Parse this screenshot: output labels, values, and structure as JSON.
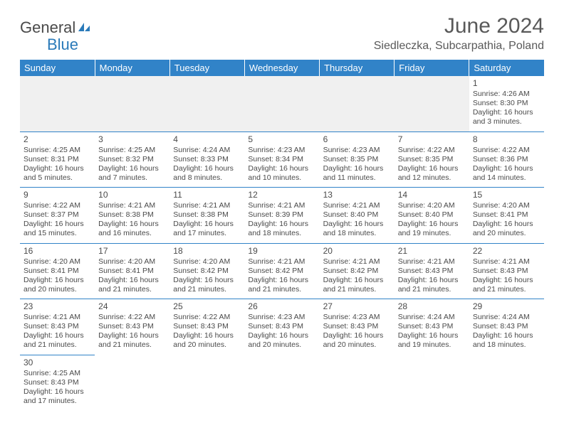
{
  "logo": {
    "text1": "General",
    "text2": "Blue"
  },
  "title": "June 2024",
  "location": "Siedleczka, Subcarpathia, Poland",
  "colors": {
    "header_bg": "#3183c8",
    "header_text": "#ffffff",
    "cell_border": "#3183c8",
    "text": "#4a4a4a",
    "blank_bg": "#f0f0f0",
    "logo_blue": "#2a7ab9"
  },
  "weekdays": [
    "Sunday",
    "Monday",
    "Tuesday",
    "Wednesday",
    "Thursday",
    "Friday",
    "Saturday"
  ],
  "weeks": [
    [
      null,
      null,
      null,
      null,
      null,
      null,
      {
        "n": "1",
        "sunrise": "4:26 AM",
        "sunset": "8:30 PM",
        "daylight": "16 hours and 3 minutes."
      }
    ],
    [
      {
        "n": "2",
        "sunrise": "4:25 AM",
        "sunset": "8:31 PM",
        "daylight": "16 hours and 5 minutes."
      },
      {
        "n": "3",
        "sunrise": "4:25 AM",
        "sunset": "8:32 PM",
        "daylight": "16 hours and 7 minutes."
      },
      {
        "n": "4",
        "sunrise": "4:24 AM",
        "sunset": "8:33 PM",
        "daylight": "16 hours and 8 minutes."
      },
      {
        "n": "5",
        "sunrise": "4:23 AM",
        "sunset": "8:34 PM",
        "daylight": "16 hours and 10 minutes."
      },
      {
        "n": "6",
        "sunrise": "4:23 AM",
        "sunset": "8:35 PM",
        "daylight": "16 hours and 11 minutes."
      },
      {
        "n": "7",
        "sunrise": "4:22 AM",
        "sunset": "8:35 PM",
        "daylight": "16 hours and 12 minutes."
      },
      {
        "n": "8",
        "sunrise": "4:22 AM",
        "sunset": "8:36 PM",
        "daylight": "16 hours and 14 minutes."
      }
    ],
    [
      {
        "n": "9",
        "sunrise": "4:22 AM",
        "sunset": "8:37 PM",
        "daylight": "16 hours and 15 minutes."
      },
      {
        "n": "10",
        "sunrise": "4:21 AM",
        "sunset": "8:38 PM",
        "daylight": "16 hours and 16 minutes."
      },
      {
        "n": "11",
        "sunrise": "4:21 AM",
        "sunset": "8:38 PM",
        "daylight": "16 hours and 17 minutes."
      },
      {
        "n": "12",
        "sunrise": "4:21 AM",
        "sunset": "8:39 PM",
        "daylight": "16 hours and 18 minutes."
      },
      {
        "n": "13",
        "sunrise": "4:21 AM",
        "sunset": "8:40 PM",
        "daylight": "16 hours and 18 minutes."
      },
      {
        "n": "14",
        "sunrise": "4:20 AM",
        "sunset": "8:40 PM",
        "daylight": "16 hours and 19 minutes."
      },
      {
        "n": "15",
        "sunrise": "4:20 AM",
        "sunset": "8:41 PM",
        "daylight": "16 hours and 20 minutes."
      }
    ],
    [
      {
        "n": "16",
        "sunrise": "4:20 AM",
        "sunset": "8:41 PM",
        "daylight": "16 hours and 20 minutes."
      },
      {
        "n": "17",
        "sunrise": "4:20 AM",
        "sunset": "8:41 PM",
        "daylight": "16 hours and 21 minutes."
      },
      {
        "n": "18",
        "sunrise": "4:20 AM",
        "sunset": "8:42 PM",
        "daylight": "16 hours and 21 minutes."
      },
      {
        "n": "19",
        "sunrise": "4:21 AM",
        "sunset": "8:42 PM",
        "daylight": "16 hours and 21 minutes."
      },
      {
        "n": "20",
        "sunrise": "4:21 AM",
        "sunset": "8:42 PM",
        "daylight": "16 hours and 21 minutes."
      },
      {
        "n": "21",
        "sunrise": "4:21 AM",
        "sunset": "8:43 PM",
        "daylight": "16 hours and 21 minutes."
      },
      {
        "n": "22",
        "sunrise": "4:21 AM",
        "sunset": "8:43 PM",
        "daylight": "16 hours and 21 minutes."
      }
    ],
    [
      {
        "n": "23",
        "sunrise": "4:21 AM",
        "sunset": "8:43 PM",
        "daylight": "16 hours and 21 minutes."
      },
      {
        "n": "24",
        "sunrise": "4:22 AM",
        "sunset": "8:43 PM",
        "daylight": "16 hours and 21 minutes."
      },
      {
        "n": "25",
        "sunrise": "4:22 AM",
        "sunset": "8:43 PM",
        "daylight": "16 hours and 20 minutes."
      },
      {
        "n": "26",
        "sunrise": "4:23 AM",
        "sunset": "8:43 PM",
        "daylight": "16 hours and 20 minutes."
      },
      {
        "n": "27",
        "sunrise": "4:23 AM",
        "sunset": "8:43 PM",
        "daylight": "16 hours and 20 minutes."
      },
      {
        "n": "28",
        "sunrise": "4:24 AM",
        "sunset": "8:43 PM",
        "daylight": "16 hours and 19 minutes."
      },
      {
        "n": "29",
        "sunrise": "4:24 AM",
        "sunset": "8:43 PM",
        "daylight": "16 hours and 18 minutes."
      }
    ],
    [
      {
        "n": "30",
        "sunrise": "4:25 AM",
        "sunset": "8:43 PM",
        "daylight": "16 hours and 17 minutes."
      },
      null,
      null,
      null,
      null,
      null,
      null
    ]
  ],
  "labels": {
    "sunrise": "Sunrise:",
    "sunset": "Sunset:",
    "daylight": "Daylight:"
  }
}
